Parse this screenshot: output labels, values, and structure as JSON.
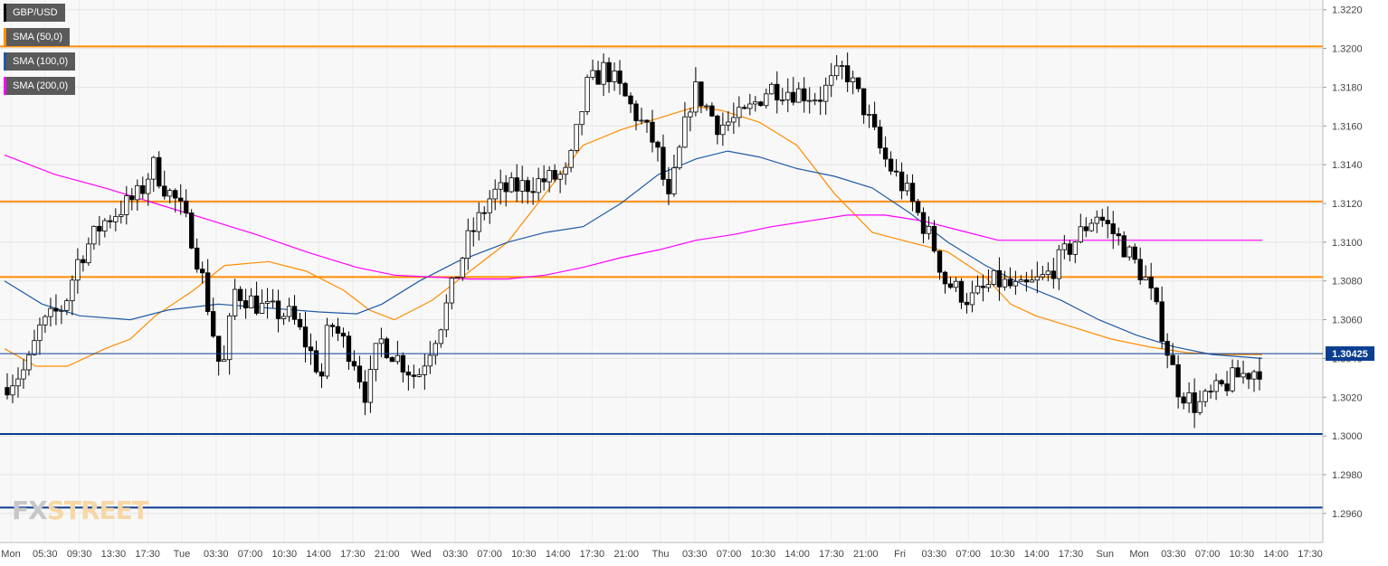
{
  "legend": [
    {
      "label": "GBP/USD",
      "color": "#000000"
    },
    {
      "label": "SMA (50,0)",
      "color": "#ff8c00"
    },
    {
      "label": "SMA (100,0)",
      "color": "#1f5aa6"
    },
    {
      "label": "SMA (200,0)",
      "color": "#ff00ff"
    }
  ],
  "logo": {
    "fx": "FX",
    "street": "STREET"
  },
  "chart_data": {
    "type": "candlestick",
    "instrument": "GBP/USD",
    "ylim": [
      1.2945,
      1.3225
    ],
    "y_ticks": [
      "1.3220",
      "1.3200",
      "1.3180",
      "1.3160",
      "1.3140",
      "1.3120",
      "1.3100",
      "1.3080",
      "1.3060",
      "1.3040",
      "1.3020",
      "1.3000",
      "1.2980",
      "1.2960"
    ],
    "x_tick_labels": [
      "Mon",
      "05:30",
      "09:30",
      "13:30",
      "17:30",
      "Tue",
      "03:30",
      "07:00",
      "10:30",
      "14:00",
      "17:30",
      "21:00",
      "Wed",
      "03:30",
      "07:00",
      "10:30",
      "14:00",
      "17:30",
      "21:00",
      "Thu",
      "03:30",
      "07:00",
      "10:30",
      "14:00",
      "17:30",
      "21:00",
      "Fri",
      "03:30",
      "07:00",
      "10:30",
      "14:00",
      "17:30",
      "Sun",
      "Mon",
      "03:30",
      "07:00",
      "10:30",
      "14:00",
      "17:30"
    ],
    "last_price": "1.30425",
    "last_price_value": 1.30425,
    "horizontal_levels": [
      {
        "value": 1.3201,
        "color": "#ff8c00"
      },
      {
        "value": 1.3121,
        "color": "#ff8c00"
      },
      {
        "value": 1.3082,
        "color": "#ff8c00"
      },
      {
        "value": 1.3001,
        "color": "#0b3d91"
      },
      {
        "value": 1.2963,
        "color": "#0b3d91"
      }
    ],
    "price_path": [
      [
        0,
        1.3025
      ],
      [
        0.02,
        1.3035
      ],
      [
        0.03,
        1.3055
      ],
      [
        0.05,
        1.3068
      ],
      [
        0.06,
        1.309
      ],
      [
        0.08,
        1.311
      ],
      [
        0.09,
        1.3115
      ],
      [
        0.11,
        1.3125
      ],
      [
        0.12,
        1.314
      ],
      [
        0.13,
        1.3128
      ],
      [
        0.14,
        1.312
      ],
      [
        0.15,
        1.3105
      ],
      [
        0.16,
        1.308
      ],
      [
        0.175,
        1.303
      ],
      [
        0.185,
        1.3075
      ],
      [
        0.21,
        1.3065
      ],
      [
        0.23,
        1.3062
      ],
      [
        0.24,
        1.305
      ],
      [
        0.255,
        1.303
      ],
      [
        0.26,
        1.306
      ],
      [
        0.28,
        1.304
      ],
      [
        0.29,
        1.302
      ],
      [
        0.3,
        1.305
      ],
      [
        0.33,
        1.303
      ],
      [
        0.35,
        1.306
      ],
      [
        0.37,
        1.31
      ],
      [
        0.39,
        1.3125
      ],
      [
        0.42,
        1.313
      ],
      [
        0.45,
        1.3135
      ],
      [
        0.465,
        1.318
      ],
      [
        0.48,
        1.319
      ],
      [
        0.5,
        1.317
      ],
      [
        0.52,
        1.315
      ],
      [
        0.53,
        1.312
      ],
      [
        0.55,
        1.318
      ],
      [
        0.57,
        1.316
      ],
      [
        0.59,
        1.3165
      ],
      [
        0.61,
        1.318
      ],
      [
        0.63,
        1.3178
      ],
      [
        0.65,
        1.3175
      ],
      [
        0.67,
        1.319
      ],
      [
        0.685,
        1.317
      ],
      [
        0.7,
        1.3145
      ],
      [
        0.72,
        1.3125
      ],
      [
        0.74,
        1.31
      ],
      [
        0.75,
        1.308
      ],
      [
        0.77,
        1.307
      ],
      [
        0.79,
        1.308
      ],
      [
        0.81,
        1.3075
      ],
      [
        0.83,
        1.3082
      ],
      [
        0.85,
        1.3098
      ],
      [
        0.87,
        1.3115
      ],
      [
        0.89,
        1.31
      ],
      [
        0.91,
        1.308
      ],
      [
        0.92,
        1.306
      ],
      [
        0.935,
        1.3025
      ],
      [
        0.95,
        1.3015
      ],
      [
        0.96,
        1.302
      ],
      [
        0.98,
        1.303
      ],
      [
        1.0,
        1.3035
      ]
    ],
    "series": [
      {
        "name": "SMA (50,0)",
        "color": "#ff8c00",
        "points": [
          [
            0,
            1.3045
          ],
          [
            0.025,
            1.3036
          ],
          [
            0.05,
            1.3036
          ],
          [
            0.08,
            1.3045
          ],
          [
            0.1,
            1.305
          ],
          [
            0.12,
            1.3062
          ],
          [
            0.15,
            1.3075
          ],
          [
            0.175,
            1.3088
          ],
          [
            0.21,
            1.309
          ],
          [
            0.24,
            1.3085
          ],
          [
            0.27,
            1.3075
          ],
          [
            0.29,
            1.3065
          ],
          [
            0.31,
            1.306
          ],
          [
            0.34,
            1.307
          ],
          [
            0.37,
            1.3085
          ],
          [
            0.4,
            1.31
          ],
          [
            0.43,
            1.3125
          ],
          [
            0.46,
            1.315
          ],
          [
            0.49,
            1.3158
          ],
          [
            0.52,
            1.3164
          ],
          [
            0.55,
            1.317
          ],
          [
            0.57,
            1.3168
          ],
          [
            0.6,
            1.3162
          ],
          [
            0.63,
            1.315
          ],
          [
            0.66,
            1.3125
          ],
          [
            0.69,
            1.3105
          ],
          [
            0.72,
            1.31
          ],
          [
            0.75,
            1.3095
          ],
          [
            0.78,
            1.3082
          ],
          [
            0.8,
            1.3068
          ],
          [
            0.82,
            1.3062
          ],
          [
            0.85,
            1.3056
          ],
          [
            0.88,
            1.305
          ],
          [
            0.91,
            1.3046
          ],
          [
            0.94,
            1.3043
          ],
          [
            0.97,
            1.3042
          ],
          [
            1.0,
            1.3042
          ]
        ]
      },
      {
        "name": "SMA (100,0)",
        "color": "#1f5aa6",
        "points": [
          [
            0,
            1.308
          ],
          [
            0.03,
            1.3068
          ],
          [
            0.06,
            1.3062
          ],
          [
            0.1,
            1.306
          ],
          [
            0.13,
            1.3065
          ],
          [
            0.17,
            1.3068
          ],
          [
            0.21,
            1.3066
          ],
          [
            0.25,
            1.3064
          ],
          [
            0.28,
            1.3063
          ],
          [
            0.3,
            1.3068
          ],
          [
            0.33,
            1.308
          ],
          [
            0.36,
            1.309
          ],
          [
            0.4,
            1.31
          ],
          [
            0.43,
            1.3105
          ],
          [
            0.46,
            1.3108
          ],
          [
            0.49,
            1.312
          ],
          [
            0.52,
            1.3135
          ],
          [
            0.55,
            1.3143
          ],
          [
            0.575,
            1.3147
          ],
          [
            0.6,
            1.3144
          ],
          [
            0.63,
            1.3138
          ],
          [
            0.66,
            1.3134
          ],
          [
            0.69,
            1.3128
          ],
          [
            0.72,
            1.3115
          ],
          [
            0.75,
            1.31
          ],
          [
            0.78,
            1.3088
          ],
          [
            0.81,
            1.3078
          ],
          [
            0.84,
            1.307
          ],
          [
            0.87,
            1.306
          ],
          [
            0.9,
            1.3052
          ],
          [
            0.93,
            1.3046
          ],
          [
            0.96,
            1.3042
          ],
          [
            1.0,
            1.304
          ]
        ]
      },
      {
        "name": "SMA (200,0)",
        "color": "#ff00ff",
        "points": [
          [
            0,
            1.3145
          ],
          [
            0.04,
            1.3135
          ],
          [
            0.08,
            1.3128
          ],
          [
            0.12,
            1.312
          ],
          [
            0.16,
            1.3112
          ],
          [
            0.2,
            1.3104
          ],
          [
            0.24,
            1.3095
          ],
          [
            0.28,
            1.3087
          ],
          [
            0.31,
            1.3083
          ],
          [
            0.34,
            1.3082
          ],
          [
            0.37,
            1.3081
          ],
          [
            0.4,
            1.3081
          ],
          [
            0.43,
            1.3083
          ],
          [
            0.46,
            1.3087
          ],
          [
            0.49,
            1.3092
          ],
          [
            0.52,
            1.3096
          ],
          [
            0.55,
            1.3101
          ],
          [
            0.58,
            1.3104
          ],
          [
            0.61,
            1.3108
          ],
          [
            0.64,
            1.3111
          ],
          [
            0.67,
            1.3114
          ],
          [
            0.7,
            1.3114
          ],
          [
            0.73,
            1.3111
          ],
          [
            0.76,
            1.3106
          ],
          [
            0.79,
            1.3101
          ],
          [
            0.82,
            1.3101
          ],
          [
            0.85,
            1.3101
          ],
          [
            0.88,
            1.3101
          ],
          [
            0.91,
            1.3101
          ],
          [
            0.94,
            1.3101
          ],
          [
            0.97,
            1.3101
          ],
          [
            1.0,
            1.3101
          ]
        ]
      }
    ]
  }
}
